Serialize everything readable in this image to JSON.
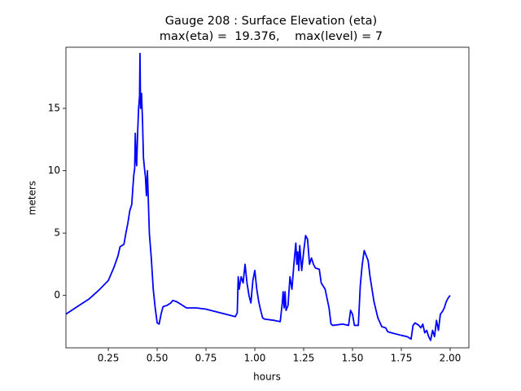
{
  "chart_data": {
    "type": "line",
    "title": "Gauge 208 : Surface Elevation (eta)",
    "subtitle": "max(eta) =  19.376,    max(level) = 7",
    "xlabel": "hours",
    "ylabel": "meters",
    "xlim": [
      0.033,
      2.096
    ],
    "ylim": [
      -4.2,
      19.9
    ],
    "xticks": [
      0.25,
      {
        "value": 0.5,
        "label": "0.50"
      },
      0.75,
      {
        "value": 1,
        "label": "1.00"
      },
      1.25,
      {
        "value": 1.5,
        "label": "1.50"
      },
      1.75,
      {
        "value": 2,
        "label": "2.00"
      }
    ],
    "yticks": [
      0,
      5,
      10,
      15
    ],
    "grid": false,
    "x": [
      0.033,
      0.1,
      0.15,
      0.2,
      0.25,
      0.28,
      0.3,
      0.31,
      0.33,
      0.34,
      0.35,
      0.36,
      0.37,
      0.375,
      0.38,
      0.385,
      0.388,
      0.392,
      0.395,
      0.4,
      0.405,
      0.41,
      0.412,
      0.415,
      0.42,
      0.425,
      0.43,
      0.435,
      0.44,
      0.445,
      0.45,
      0.455,
      0.46,
      0.47,
      0.48,
      0.49,
      0.5,
      0.51,
      0.52,
      0.53,
      0.55,
      0.57,
      0.58,
      0.6,
      0.62,
      0.65,
      0.7,
      0.75,
      0.8,
      0.85,
      0.9,
      0.91,
      0.915,
      0.92,
      0.93,
      0.94,
      0.95,
      0.96,
      0.97,
      0.98,
      0.99,
      1.0,
      1.01,
      1.02,
      1.03,
      1.04,
      1.05,
      1.1,
      1.13,
      1.14,
      1.145,
      1.15,
      1.155,
      1.16,
      1.17,
      1.18,
      1.19,
      1.2,
      1.21,
      1.215,
      1.22,
      1.225,
      1.23,
      1.24,
      1.25,
      1.26,
      1.27,
      1.28,
      1.29,
      1.3,
      1.31,
      1.33,
      1.34,
      1.36,
      1.38,
      1.39,
      1.4,
      1.45,
      1.48,
      1.49,
      1.5,
      1.51,
      1.53,
      1.54,
      1.55,
      1.56,
      1.58,
      1.59,
      1.61,
      1.63,
      1.65,
      1.67,
      1.68,
      1.7,
      1.75,
      1.78,
      1.8,
      1.81,
      1.82,
      1.84,
      1.85,
      1.86,
      1.87,
      1.88,
      1.89,
      1.9,
      1.91,
      1.92,
      1.93,
      1.94,
      1.95,
      1.96,
      1.97,
      1.98,
      1.99,
      2.0
    ],
    "series": [
      {
        "name": "eta",
        "color": "#0000ff",
        "values": [
          -1.5,
          -0.8,
          -0.3,
          0.4,
          1.2,
          2.3,
          3.2,
          3.9,
          4.1,
          5.0,
          5.8,
          6.8,
          7.3,
          8.5,
          9.6,
          10.2,
          13.0,
          11.0,
          10.4,
          13.0,
          15.0,
          16.0,
          19.4,
          15.0,
          16.2,
          14.0,
          11.0,
          10.2,
          9.5,
          8.0,
          10.0,
          7.5,
          5.0,
          3.0,
          0.5,
          -1.0,
          -2.2,
          -2.3,
          -1.5,
          -0.9,
          -0.8,
          -0.6,
          -0.4,
          -0.5,
          -0.7,
          -1.0,
          -1.0,
          -1.1,
          -1.3,
          -1.5,
          -1.7,
          -1.4,
          1.5,
          0.5,
          1.5,
          1.0,
          2.5,
          1.0,
          0.0,
          -0.6,
          1.2,
          2.0,
          0.5,
          -0.5,
          -1.2,
          -1.8,
          -1.9,
          -2.0,
          -2.1,
          -0.7,
          0.3,
          -1.0,
          0.3,
          -1.2,
          -0.8,
          1.5,
          0.5,
          2.5,
          4.2,
          2.5,
          3.5,
          2.0,
          4.0,
          2.0,
          3.5,
          4.8,
          4.5,
          2.5,
          3.0,
          2.5,
          2.2,
          2.1,
          1.0,
          0.5,
          -1.0,
          -2.3,
          -2.4,
          -2.3,
          -2.4,
          -1.2,
          -1.5,
          -2.4,
          -2.4,
          0.8,
          2.5,
          3.6,
          2.8,
          1.5,
          -0.5,
          -1.8,
          -2.5,
          -2.6,
          -2.9,
          -3.0,
          -3.2,
          -3.3,
          -3.5,
          -2.4,
          -2.2,
          -2.4,
          -2.6,
          -2.3,
          -3.0,
          -2.8,
          -3.3,
          -3.6,
          -2.8,
          -3.3,
          -2.0,
          -2.8,
          -1.5,
          -1.3,
          -1.0,
          -0.5,
          -0.2,
          0.0
        ]
      }
    ]
  }
}
